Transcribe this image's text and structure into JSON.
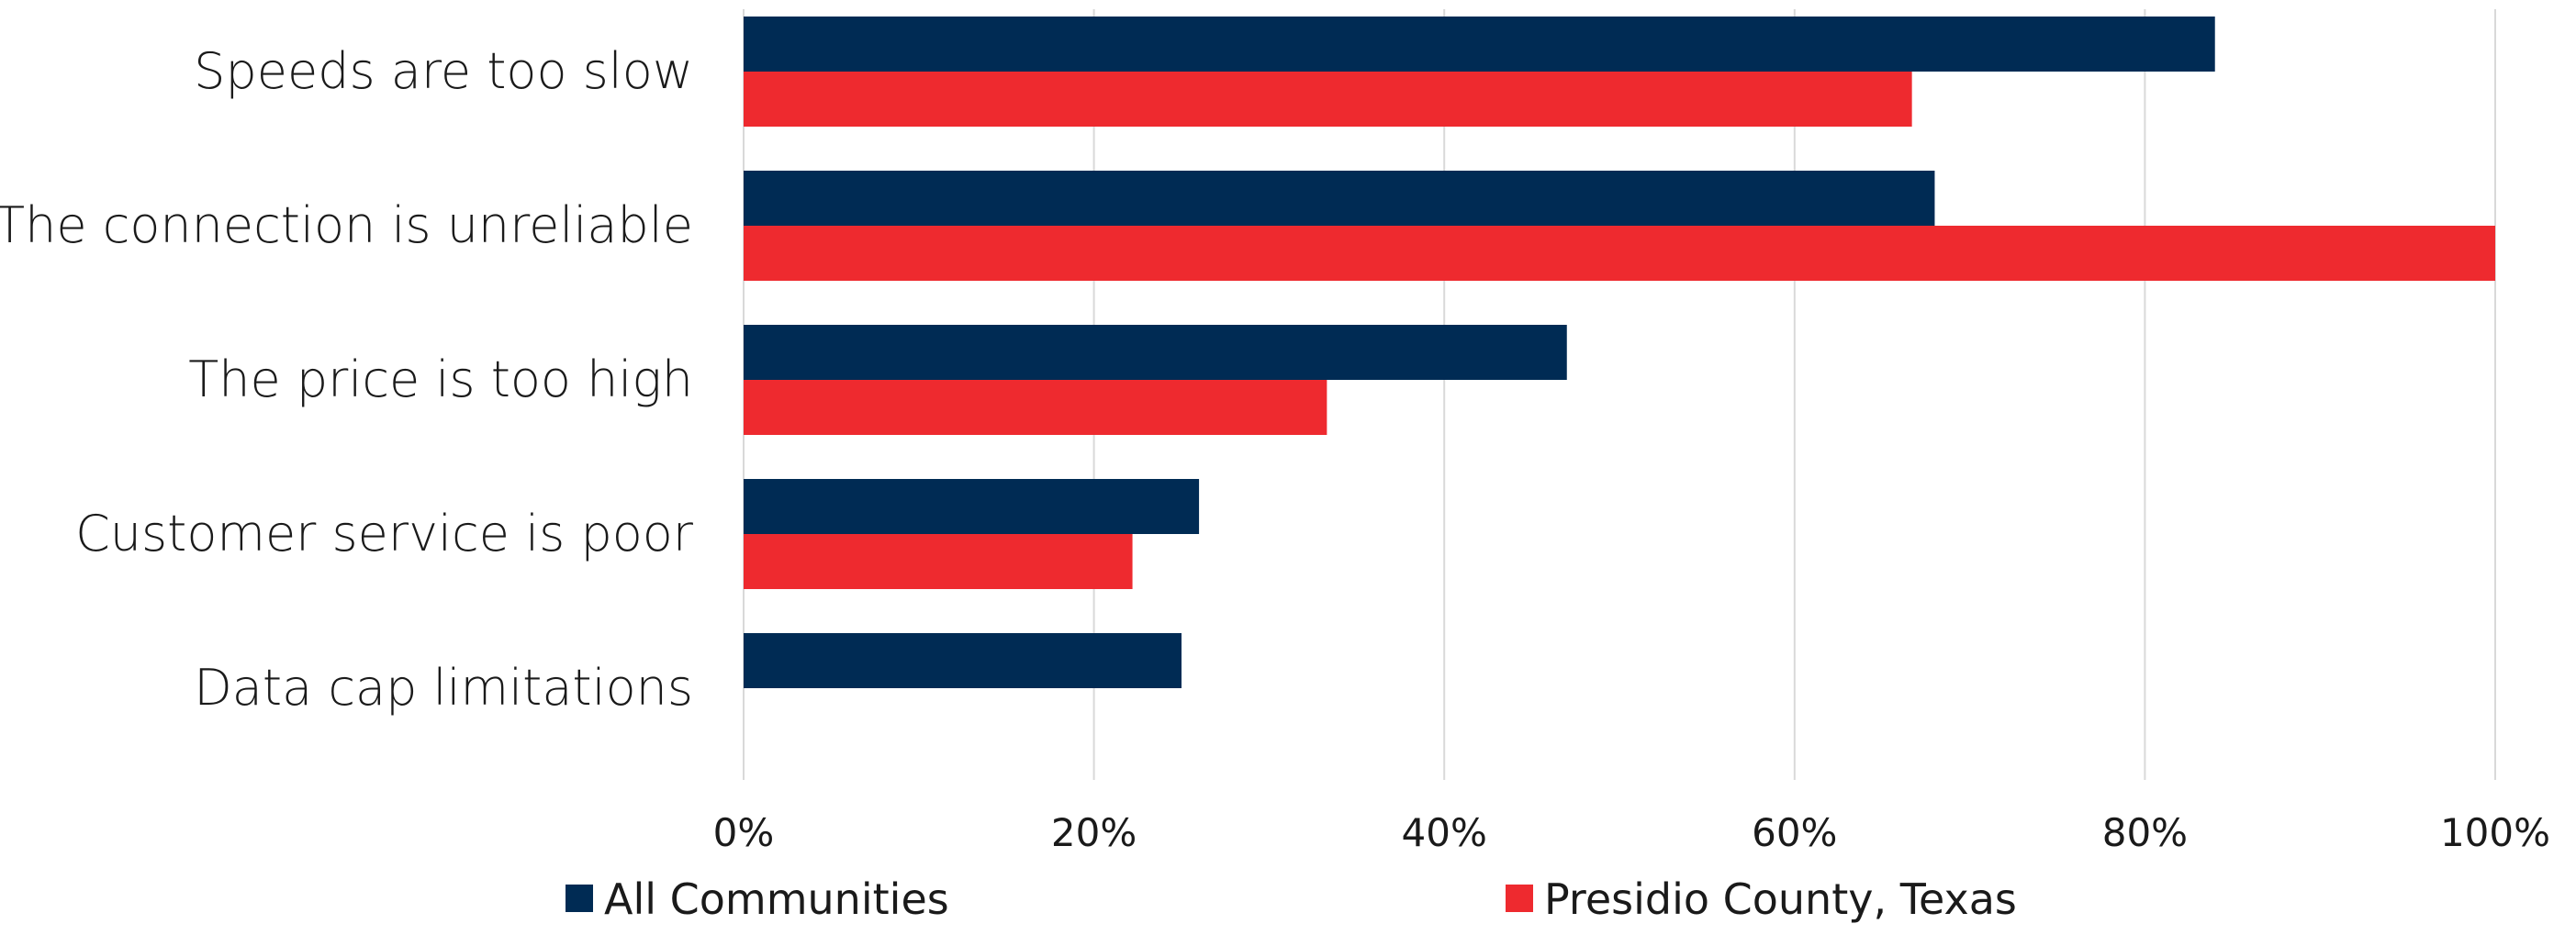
{
  "chart_data": {
    "type": "bar",
    "orientation": "horizontal",
    "categories": [
      "Speeds are too slow",
      "The connection is unreliable",
      "The price is too high",
      "Customer service is poor",
      "Data cap limitations"
    ],
    "series": [
      {
        "name": "All Communities",
        "color": "#002b54",
        "values": [
          84,
          68,
          47,
          26,
          25
        ]
      },
      {
        "name": "Presidio County, Texas",
        "color": "#ee2a2f",
        "values": [
          66.7,
          100,
          33.3,
          22.2,
          0
        ]
      }
    ],
    "xlim": [
      0,
      100
    ],
    "x_ticks": [
      0,
      20,
      40,
      60,
      80,
      100
    ],
    "x_tick_labels": [
      "0%",
      "20%",
      "40%",
      "60%",
      "80%",
      "100%"
    ],
    "grid": true,
    "legend_position": "bottom"
  }
}
